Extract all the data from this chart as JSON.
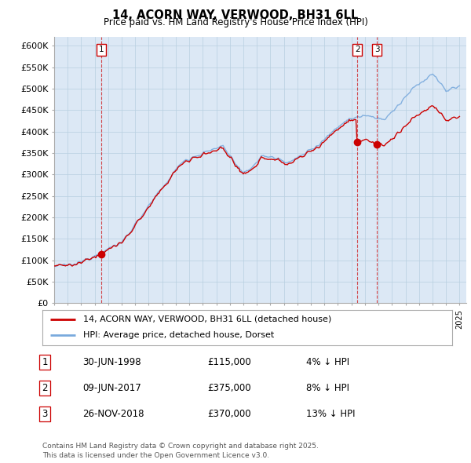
{
  "title": "14, ACORN WAY, VERWOOD, BH31 6LL",
  "subtitle": "Price paid vs. HM Land Registry's House Price Index (HPI)",
  "ylabel_ticks": [
    "£0",
    "£50K",
    "£100K",
    "£150K",
    "£200K",
    "£250K",
    "£300K",
    "£350K",
    "£400K",
    "£450K",
    "£500K",
    "£550K",
    "£600K"
  ],
  "ylim": [
    0,
    620000
  ],
  "xlim_start": 1995.0,
  "xlim_end": 2025.5,
  "legend_label_red": "14, ACORN WAY, VERWOOD, BH31 6LL (detached house)",
  "legend_label_blue": "HPI: Average price, detached house, Dorset",
  "sale_points": [
    {
      "label": "1",
      "date_x": 1998.49,
      "price": 115000
    },
    {
      "label": "2",
      "date_x": 2017.44,
      "price": 375000
    },
    {
      "label": "3",
      "date_x": 2018.9,
      "price": 370000
    }
  ],
  "table_rows": [
    [
      "1",
      "30-JUN-1998",
      "£115,000",
      "4% ↓ HPI"
    ],
    [
      "2",
      "09-JUN-2017",
      "£375,000",
      "8% ↓ HPI"
    ],
    [
      "3",
      "26-NOV-2018",
      "£370,000",
      "13% ↓ HPI"
    ]
  ],
  "footer": "Contains HM Land Registry data © Crown copyright and database right 2025.\nThis data is licensed under the Open Government Licence v3.0.",
  "line_color_red": "#cc0000",
  "line_color_blue": "#7aaadd",
  "bg_color": "#ffffff",
  "chart_bg_color": "#dce8f5",
  "grid_color": "#b8cfe0"
}
